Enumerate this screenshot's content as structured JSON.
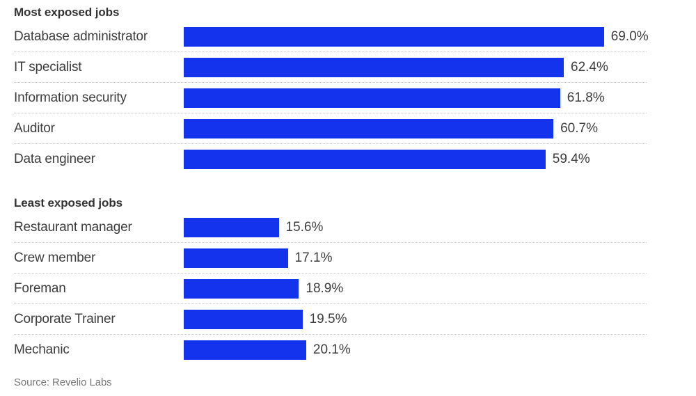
{
  "accent_color": "#1433ec",
  "separator_color": "#c9c9c9",
  "chart_data": [
    {
      "type": "bar",
      "orientation": "horizontal",
      "title": "Most exposed jobs",
      "categories": [
        "Database administrator",
        "IT specialist",
        "Information security",
        "Auditor",
        "Data engineer"
      ],
      "values": [
        69.0,
        62.4,
        61.8,
        60.7,
        59.4
      ],
      "value_labels": [
        "69.0%",
        "62.4%",
        "61.8%",
        "60.7%",
        "59.4%"
      ],
      "unit": "%",
      "xlim": [
        0,
        76
      ],
      "grid": false,
      "legend": false,
      "bar_color": "#1433ec"
    },
    {
      "type": "bar",
      "orientation": "horizontal",
      "title": "Least exposed jobs",
      "categories": [
        "Restaurant manager",
        "Crew member",
        "Foreman",
        "Corporate Trainer",
        "Mechanic"
      ],
      "values": [
        15.6,
        17.1,
        18.9,
        19.5,
        20.1
      ],
      "value_labels": [
        "15.6%",
        "17.1%",
        "18.9%",
        "19.5%",
        "20.1%"
      ],
      "unit": "%",
      "xlim": [
        0,
        76
      ],
      "grid": false,
      "legend": false,
      "bar_color": "#1433ec"
    }
  ],
  "source": "Source: Revelio Labs"
}
